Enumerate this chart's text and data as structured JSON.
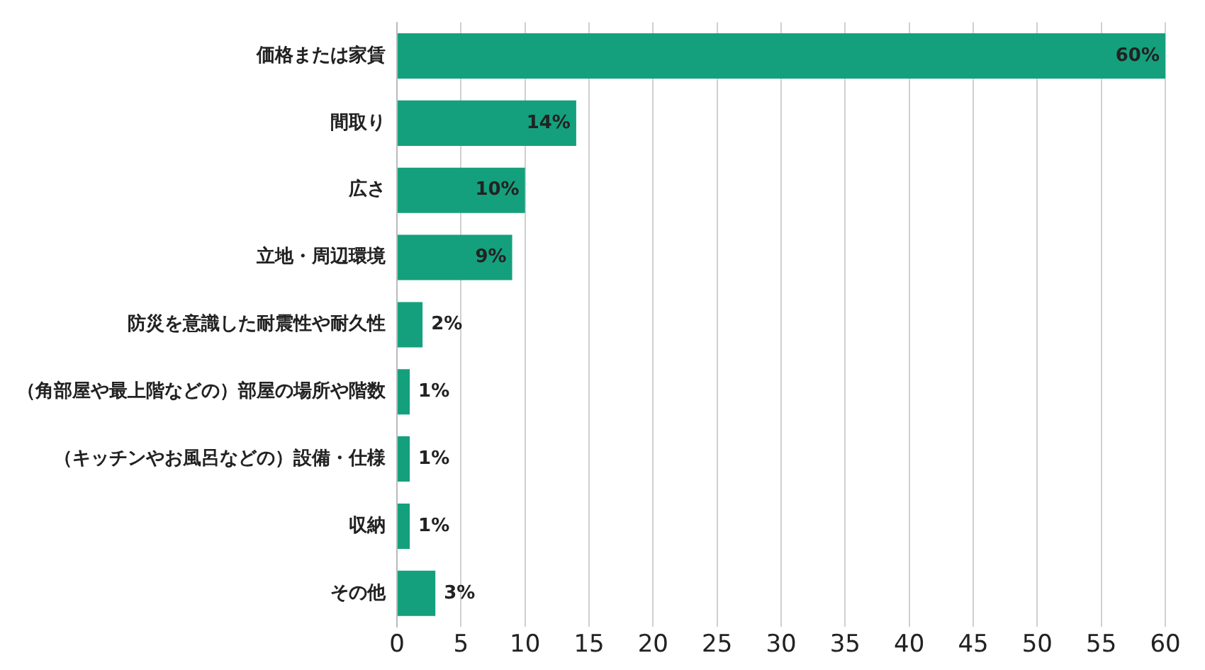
{
  "chart_data": {
    "type": "bar",
    "orientation": "horizontal",
    "categories": [
      "価格または家賃",
      "間取り",
      "広さ",
      "立地・周辺環境",
      "防災を意識した耐震性や耐久性",
      "（角部屋や最上階などの）部屋の場所や階数",
      "（キッチンやお風呂などの）設備・仕様",
      "収納",
      "その他"
    ],
    "values": [
      60,
      14,
      10,
      9,
      2,
      1,
      1,
      1,
      3
    ],
    "value_labels": [
      "60%",
      "14%",
      "10%",
      "9%",
      "2%",
      "1%",
      "1%",
      "1%",
      "3%"
    ],
    "color": "#14a07d",
    "xlim": [
      0,
      60
    ],
    "xticks": [
      0,
      5,
      10,
      15,
      20,
      25,
      30,
      35,
      40,
      45,
      50,
      55,
      60
    ],
    "grid": "x",
    "legend": false
  }
}
